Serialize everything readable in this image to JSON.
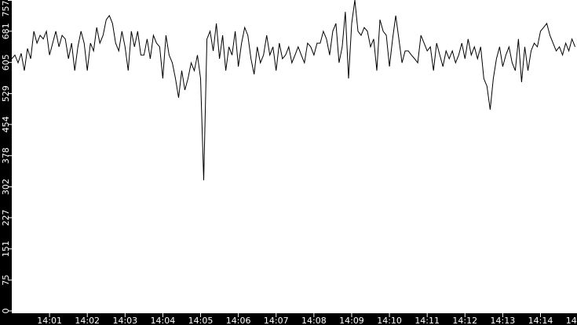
{
  "chart_data": {
    "type": "line",
    "title": "",
    "xlabel": "",
    "ylabel": "",
    "ylim": [
      0,
      757
    ],
    "xlim": [
      "14:00:00",
      "14:14:58"
    ],
    "grid": false,
    "colors": {
      "background": "#000000",
      "plot_background": "#ffffff",
      "line": "#000000",
      "text": "#ffffff"
    },
    "y_ticks": [
      0,
      75,
      151,
      227,
      302,
      378,
      454,
      529,
      605,
      681,
      757
    ],
    "x_ticks": [
      "14:01",
      "14:02",
      "14:03",
      "14:04",
      "14:05",
      "14:06",
      "14:07",
      "14:08",
      "14:09",
      "14:10",
      "14:11",
      "14:12",
      "14:13",
      "14:14",
      "14:15"
    ],
    "series": [
      {
        "x": [
          "14:00:00",
          "14:00:05",
          "14:00:10",
          "14:00:15",
          "14:00:20",
          "14:00:25",
          "14:00:30",
          "14:00:35",
          "14:00:40",
          "14:00:45",
          "14:00:50",
          "14:00:55",
          "14:01:00",
          "14:01:05",
          "14:01:10",
          "14:01:15",
          "14:01:20",
          "14:01:25",
          "14:01:30",
          "14:01:35",
          "14:01:40",
          "14:01:45",
          "14:01:50",
          "14:01:55",
          "14:02:00",
          "14:02:05",
          "14:02:10",
          "14:02:15",
          "14:02:20",
          "14:02:25",
          "14:02:30",
          "14:02:35",
          "14:02:40",
          "14:02:45",
          "14:02:50",
          "14:02:55",
          "14:03:00",
          "14:03:05",
          "14:03:10",
          "14:03:15",
          "14:03:20",
          "14:03:25",
          "14:03:30",
          "14:03:35",
          "14:03:40",
          "14:03:45",
          "14:03:50",
          "14:03:55",
          "14:04:00",
          "14:04:05",
          "14:04:10",
          "14:04:15",
          "14:04:20",
          "14:04:25",
          "14:04:30",
          "14:04:35",
          "14:04:40",
          "14:04:45",
          "14:04:50",
          "14:04:55",
          "14:05:00",
          "14:05:05",
          "14:05:10",
          "14:05:15",
          "14:05:20",
          "14:05:25",
          "14:05:30",
          "14:05:35",
          "14:05:40",
          "14:05:45",
          "14:05:50",
          "14:05:55",
          "14:06:00",
          "14:06:05",
          "14:06:10",
          "14:06:15",
          "14:06:20",
          "14:06:25",
          "14:06:30",
          "14:06:35",
          "14:06:40",
          "14:06:45",
          "14:06:50",
          "14:06:55",
          "14:07:00",
          "14:07:05",
          "14:07:10",
          "14:07:15",
          "14:07:20",
          "14:07:25",
          "14:07:30",
          "14:07:35",
          "14:07:40",
          "14:07:45",
          "14:07:50",
          "14:07:55",
          "14:08:00",
          "14:08:05",
          "14:08:10",
          "14:08:15",
          "14:08:20",
          "14:08:25",
          "14:08:30",
          "14:08:35",
          "14:08:40",
          "14:08:45",
          "14:08:50",
          "14:08:55",
          "14:09:00",
          "14:09:05",
          "14:09:10",
          "14:09:15",
          "14:09:20",
          "14:09:25",
          "14:09:30",
          "14:09:35",
          "14:09:40",
          "14:09:45",
          "14:09:50",
          "14:09:55",
          "14:10:00",
          "14:10:05",
          "14:10:10",
          "14:10:15",
          "14:10:20",
          "14:10:25",
          "14:10:30",
          "14:10:35",
          "14:10:40",
          "14:10:45",
          "14:10:50",
          "14:10:55",
          "14:11:00",
          "14:11:05",
          "14:11:10",
          "14:11:15",
          "14:11:20",
          "14:11:25",
          "14:11:30",
          "14:11:35",
          "14:11:40",
          "14:11:45",
          "14:11:50",
          "14:11:55",
          "14:12:00",
          "14:12:05",
          "14:12:10",
          "14:12:15",
          "14:12:20",
          "14:12:25",
          "14:12:30",
          "14:12:35",
          "14:12:40",
          "14:12:45",
          "14:12:50",
          "14:12:55",
          "14:13:00",
          "14:13:05",
          "14:13:10",
          "14:13:15",
          "14:13:20",
          "14:13:25",
          "14:13:30",
          "14:13:35",
          "14:13:40",
          "14:13:45",
          "14:13:50",
          "14:13:55",
          "14:14:00",
          "14:14:05",
          "14:14:10",
          "14:14:15",
          "14:14:20",
          "14:14:25",
          "14:14:30",
          "14:14:35",
          "14:14:40",
          "14:14:45",
          "14:14:50",
          "14:14:55"
        ],
        "values": [
          614,
          623,
          604,
          627,
          585,
          639,
          614,
          681,
          652,
          671,
          662,
          681,
          623,
          652,
          681,
          643,
          671,
          662,
          614,
          652,
          585,
          643,
          681,
          652,
          585,
          652,
          633,
          690,
          652,
          671,
          709,
          719,
          700,
          652,
          633,
          681,
          643,
          585,
          681,
          643,
          681,
          623,
          623,
          662,
          614,
          671,
          652,
          643,
          566,
          671,
          623,
          604,
          566,
          519,
          585,
          538,
          566,
          604,
          585,
          623,
          566,
          318,
          662,
          681,
          633,
          700,
          614,
          671,
          585,
          643,
          623,
          681,
          595,
          652,
          690,
          671,
          614,
          576,
          643,
          604,
          623,
          671,
          623,
          643,
          585,
          652,
          614,
          623,
          643,
          604,
          623,
          643,
          623,
          604,
          652,
          643,
          623,
          652,
          652,
          681,
          662,
          623,
          681,
          700,
          604,
          643,
          728,
          566,
          700,
          757,
          681,
          671,
          690,
          681,
          643,
          662,
          585,
          709,
          681,
          671,
          595,
          662,
          719,
          662,
          604,
          633,
          633,
          623,
          614,
          604,
          671,
          652,
          633,
          643,
          585,
          652,
          623,
          595,
          633,
          614,
          633,
          604,
          623,
          652,
          614,
          662,
          623,
          643,
          614,
          643,
          566,
          547,
          490,
          566,
          614,
          643,
          595,
          623,
          643,
          604,
          585,
          662,
          557,
          643,
          585,
          633,
          652,
          643,
          681,
          690,
          700,
          671,
          652,
          633,
          643,
          623,
          652,
          633,
          662,
          643
        ]
      }
    ]
  }
}
